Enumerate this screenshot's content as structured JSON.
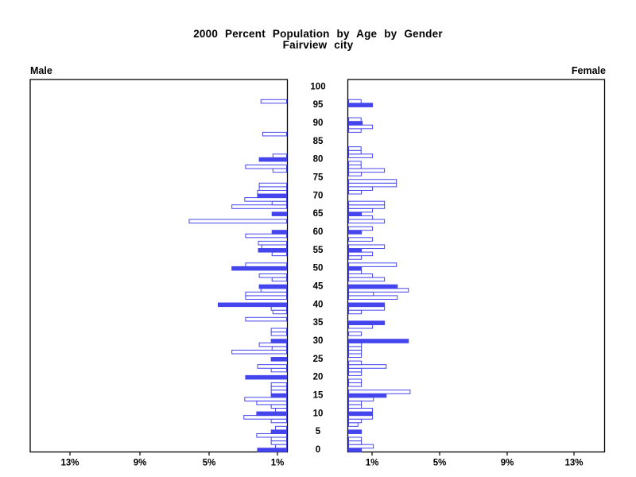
{
  "header": {
    "title_line1": "2000 Percent Population by Age by Gender",
    "title_line2": "Fairview city",
    "left_panel_label": "Male",
    "right_panel_label": "Female"
  },
  "chart_data": {
    "type": "bar",
    "subtype": "population-pyramid",
    "title": "2000 Percent Population by Age by Gender",
    "subtitle": "Fairview city",
    "unit": "percent of population per single year of age",
    "age_min": 0,
    "age_max": 100,
    "age_tick_labels": [
      "0",
      "5",
      "10",
      "15",
      "20",
      "25",
      "30",
      "35",
      "40",
      "45",
      "50",
      "55",
      "60",
      "65",
      "70",
      "75",
      "80",
      "85",
      "90",
      "95",
      "100"
    ],
    "left_axis": {
      "label": "Male",
      "tick_labels": [
        "13%",
        "9%",
        "5%",
        "1%"
      ],
      "tick_values": [
        13,
        9,
        5,
        1
      ],
      "range": [
        0,
        15
      ]
    },
    "right_axis": {
      "label": "Female",
      "tick_labels": [
        "1%",
        "5%",
        "9%",
        "13%"
      ],
      "tick_values": [
        1,
        5,
        9,
        13
      ],
      "range": [
        0,
        15
      ]
    },
    "highlight_rule": "bars at ages that are multiples of 5 are drawn solid; all other ages are hollow outlines",
    "series": [
      {
        "name": "Male",
        "side": "left",
        "values": [
          1.7,
          0.65,
          0.9,
          0.9,
          1.75,
          0.9,
          0.65,
          0,
          0.9,
          2.5,
          1.75,
          0.65,
          0.9,
          1.75,
          2.45,
          0.9,
          0.9,
          0.9,
          0.9,
          0,
          2.4,
          0,
          0.9,
          1.7,
          0,
          0.9,
          0,
          3.2,
          0.85,
          1.6,
          0.9,
          0,
          0.9,
          0.9,
          0,
          0,
          2.4,
          0,
          0.8,
          0.9,
          4.0,
          0,
          2.4,
          2.4,
          1.5,
          1.6,
          0,
          0.85,
          1.6,
          0,
          3.2,
          2.4,
          0,
          0,
          0.85,
          1.65,
          1.45,
          1.65,
          0,
          2.4,
          0.85,
          0,
          0,
          5.7,
          0,
          0.85,
          0,
          3.2,
          0.85,
          2.45,
          1.7,
          1.7,
          1.6,
          1.6,
          0,
          0,
          0,
          0.8,
          2.4,
          0,
          1.6,
          0.8,
          0,
          0,
          0,
          0,
          0,
          1.4,
          0,
          0,
          0,
          0,
          0,
          0,
          0,
          0,
          1.5,
          0,
          0,
          0,
          0
        ]
      },
      {
        "name": "Female",
        "side": "right",
        "values": [
          0.75,
          1.45,
          0.75,
          0.75,
          0,
          0.75,
          0,
          0.55,
          0.75,
          1.4,
          1.4,
          1.4,
          0.75,
          0.75,
          1.45,
          2.2,
          3.6,
          0,
          0.75,
          0.75,
          0,
          0.75,
          0.75,
          2.2,
          0.75,
          0,
          0.75,
          0.75,
          0.75,
          0.75,
          3.5,
          0,
          0.75,
          0,
          1.4,
          2.1,
          0,
          0,
          0.75,
          2.1,
          2.1,
          0,
          2.85,
          1.45,
          3.5,
          2.85,
          0,
          2.1,
          1.4,
          0.75,
          0.75,
          2.8,
          0,
          0.75,
          1.4,
          0.75,
          2.1,
          0,
          1.4,
          0,
          0.75,
          1.4,
          0,
          2.1,
          1.4,
          0.75,
          1.4,
          2.1,
          2.1,
          0,
          0,
          0.75,
          1.4,
          2.8,
          2.8,
          0,
          0.75,
          2.1,
          0.73,
          0.73,
          0,
          1.4,
          0.73,
          0.73,
          0,
          0,
          0,
          0,
          0.73,
          1.4,
          0.8,
          0.73,
          0,
          0,
          0,
          1.4,
          0.73,
          0,
          0,
          0,
          0
        ]
      }
    ],
    "colors": {
      "bar": "#4545ee",
      "bar_hollow_fill": "#ffffff",
      "frame": "#000000",
      "text": "#000000",
      "background": "#ffffff"
    }
  }
}
